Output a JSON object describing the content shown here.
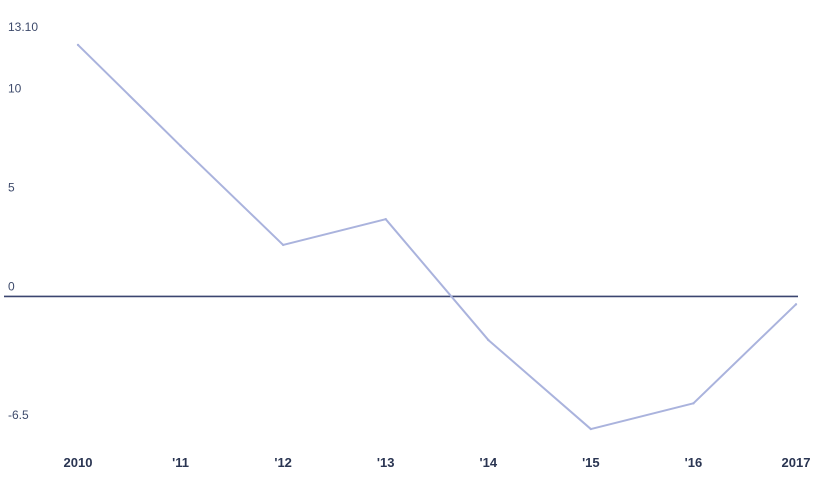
{
  "chart_data": {
    "type": "line",
    "title": "",
    "xlabel": "",
    "ylabel": "",
    "categories": [
      "2010",
      "'11",
      "'12",
      "'13",
      "'14",
      "'15",
      "'16",
      "2017"
    ],
    "series": [
      {
        "values": [
          12.7,
          7.6,
          2.6,
          3.9,
          -2.2,
          -6.7,
          -5.4,
          -0.4
        ]
      }
    ],
    "y_tick_labels": [
      "13.10",
      "10",
      "5",
      "0",
      "-6.5"
    ],
    "y_tick_values": [
      13.1,
      10,
      5,
      0,
      -6.5
    ],
    "ylim": [
      -7.0,
      13.1
    ],
    "grid": false,
    "zero_line": true,
    "colors": {
      "line": "#aab3dd",
      "zero_line": "#3b4670",
      "text": "#3d4a6b"
    }
  }
}
